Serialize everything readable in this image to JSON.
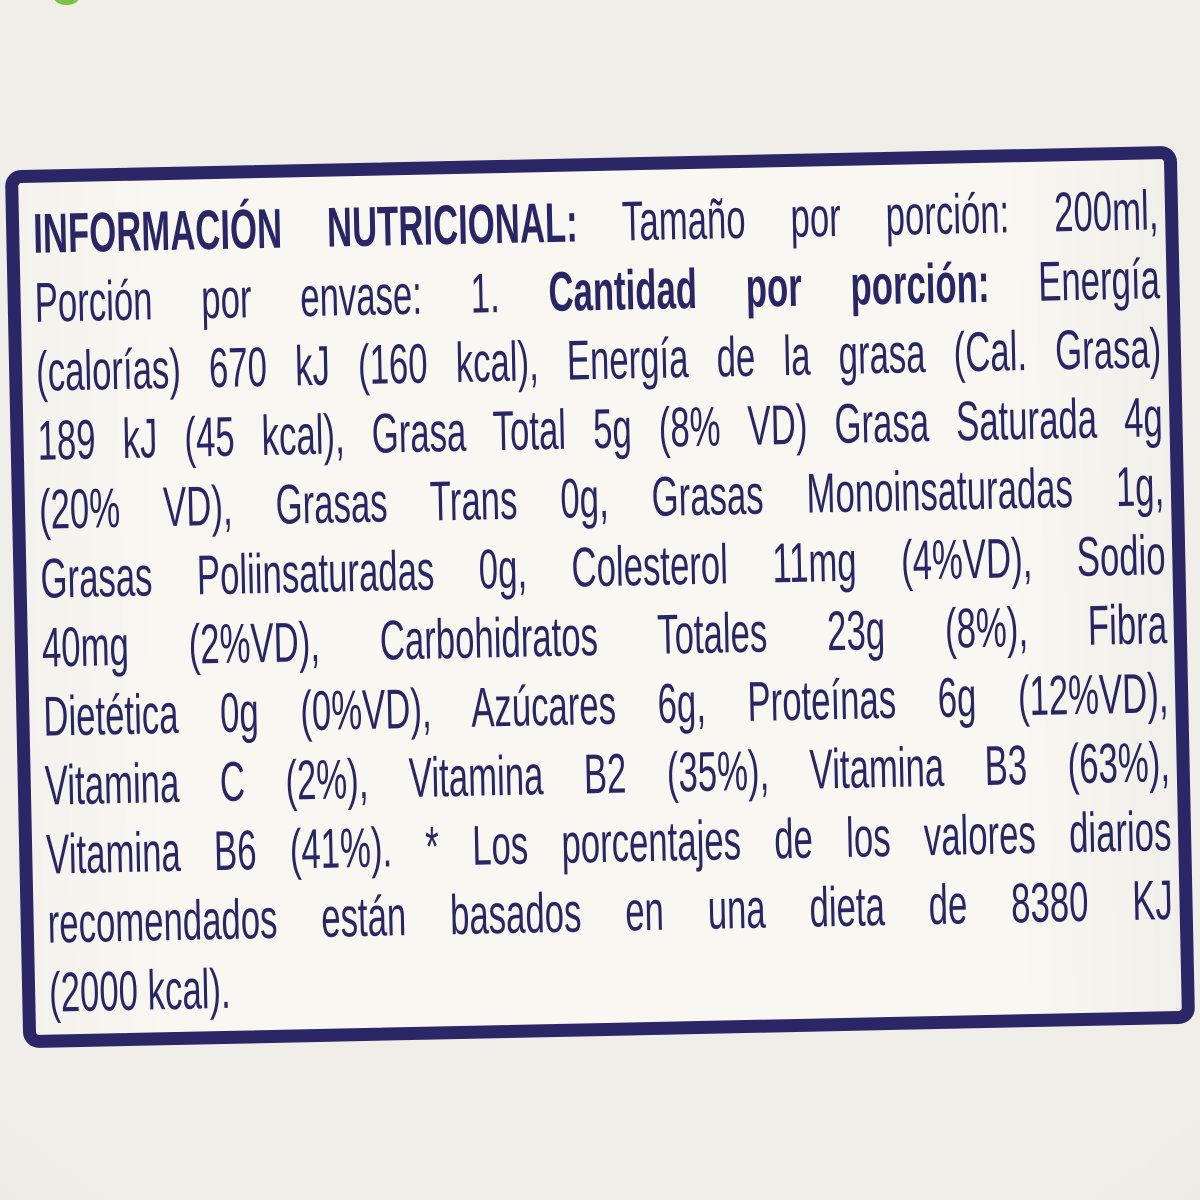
{
  "colors": {
    "ink": "#2a2565",
    "border": "#2b2666",
    "page-bg": "#efeee8",
    "label-bg": "#f8f7f1",
    "accent-green": "#7dc242"
  },
  "label": {
    "title": "INFORMACIÓN NUTRICIONAL:",
    "lines": [
      {
        "last": false,
        "segments": [
          {
            "t": "INFORMACIÓN NUTRICIONAL:",
            "b": true
          },
          {
            "t": " Tamaño por porción: 200ml,",
            "b": false
          }
        ]
      },
      {
        "last": false,
        "segments": [
          {
            "t": "Porción por envase: 1. ",
            "b": false
          },
          {
            "t": "Cantidad por porción:",
            "b": true
          },
          {
            "t": " Energía",
            "b": false
          }
        ]
      },
      {
        "last": false,
        "segments": [
          {
            "t": "(calorías) 670 kJ (160 kcal), Energía de la grasa (Cal. Grasa)",
            "b": false
          }
        ]
      },
      {
        "last": false,
        "segments": [
          {
            "t": "189 kJ (45 kcal), Grasa Total 5g (8% VD) Grasa Saturada 4g",
            "b": false
          }
        ]
      },
      {
        "last": false,
        "segments": [
          {
            "t": "(20% VD), Grasas Trans 0g, Grasas Monoinsaturadas 1g,",
            "b": false
          }
        ]
      },
      {
        "last": false,
        "segments": [
          {
            "t": "Grasas Poliinsaturadas 0g, Colesterol 11mg (4%VD), Sodio",
            "b": false
          }
        ]
      },
      {
        "last": false,
        "segments": [
          {
            "t": "40mg (2%VD), Carbohidratos Totales 23g (8%), Fibra",
            "b": false
          }
        ]
      },
      {
        "last": false,
        "segments": [
          {
            "t": "Dietética 0g (0%VD), Azúcares 6g, Proteínas 6g (12%VD),",
            "b": false
          }
        ]
      },
      {
        "last": false,
        "segments": [
          {
            "t": "Vitamina C (2%), Vitamina B2 (35%), Vitamina B3 (63%),",
            "b": false
          }
        ]
      },
      {
        "last": false,
        "segments": [
          {
            "t": "Vitamina B6 (41%). * Los porcentajes de los valores diarios",
            "b": false
          }
        ]
      },
      {
        "last": false,
        "segments": [
          {
            "t": "recomendados están basados en una dieta de 8380 KJ",
            "b": false
          }
        ]
      },
      {
        "last": true,
        "segments": [
          {
            "t": "(2000 kcal).",
            "b": false
          }
        ]
      }
    ]
  }
}
